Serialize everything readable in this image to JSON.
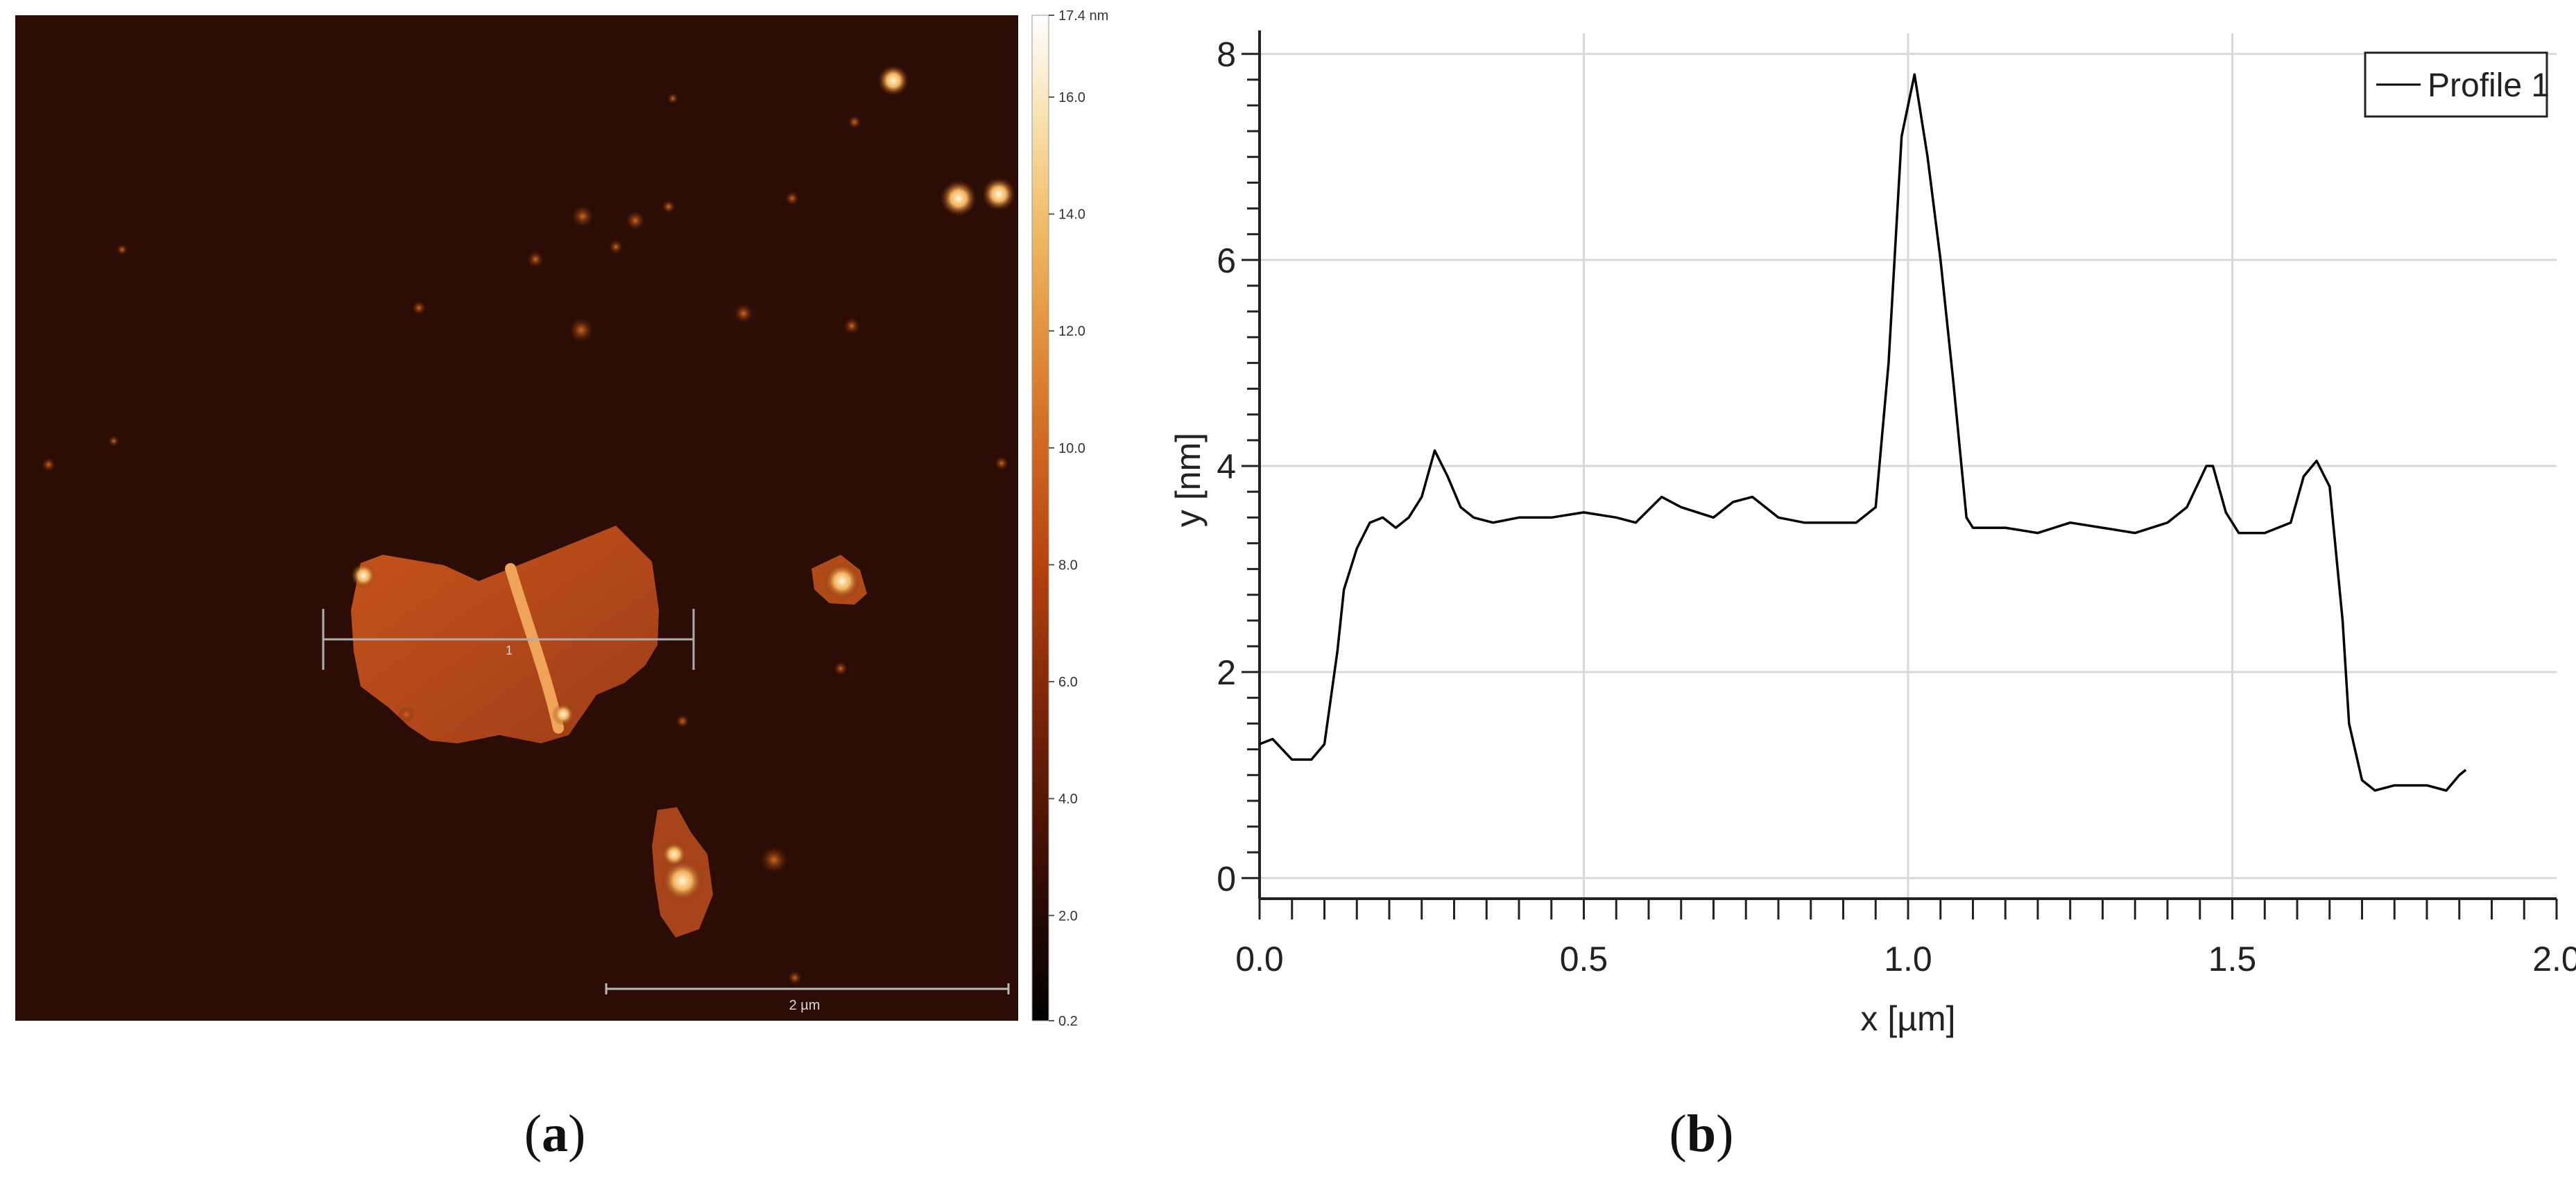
{
  "panel_a": {
    "caption": "(a)",
    "colorbar_ticks": [
      "17.4 nm",
      "16.0",
      "14.0",
      "12.0",
      "10.0",
      "8.0",
      "6.0",
      "4.0",
      "2.0",
      "0.2"
    ],
    "colorbar_range": [
      0.2,
      17.4
    ],
    "colorbar_unit": "nm",
    "scale_bar_label": "2 µm",
    "profile_marker_label": "1"
  },
  "panel_b": {
    "caption": "(b)"
  },
  "chart_data": [
    {
      "type": "heatmap",
      "title": "",
      "description_label": "AFM height image",
      "z_unit": "nm",
      "z_range": [
        0.2,
        17.4
      ],
      "colorbar_ticks": [
        0.2,
        2.0,
        4.0,
        6.0,
        8.0,
        10.0,
        12.0,
        14.0,
        16.0,
        17.4
      ],
      "scale_bar": "2 µm",
      "colors": {
        "low": "#000000",
        "mid1": "#3a0c02",
        "mid2": "#b5410f",
        "mid3": "#e8a040",
        "high": "#fffdf5"
      }
    },
    {
      "type": "line",
      "title": "",
      "xlabel": "x [µm]",
      "ylabel": "y [nm]",
      "xlim": [
        0,
        2.0
      ],
      "ylim": [
        -0.2,
        8.2
      ],
      "xticks": [
        0,
        0.5,
        1.0,
        1.5,
        2.0
      ],
      "xtick_labels": [
        "0.0",
        "0.5",
        "1.0",
        "1.5",
        "2.0"
      ],
      "yticks": [
        0,
        2,
        4,
        6,
        8
      ],
      "ytick_labels": [
        "0",
        "2",
        "4",
        "6",
        "8"
      ],
      "grid": true,
      "legend_position": "top-right",
      "series": [
        {
          "name": "Profile 1",
          "color": "#000000",
          "x": [
            0.0,
            0.02,
            0.05,
            0.08,
            0.1,
            0.12,
            0.13,
            0.15,
            0.17,
            0.19,
            0.21,
            0.23,
            0.25,
            0.27,
            0.29,
            0.31,
            0.33,
            0.36,
            0.4,
            0.45,
            0.5,
            0.55,
            0.58,
            0.62,
            0.65,
            0.7,
            0.73,
            0.76,
            0.8,
            0.84,
            0.88,
            0.92,
            0.95,
            0.97,
            0.99,
            1.01,
            1.03,
            1.05,
            1.07,
            1.09,
            1.1,
            1.15,
            1.2,
            1.25,
            1.3,
            1.35,
            1.4,
            1.43,
            1.46,
            1.47,
            1.49,
            1.51,
            1.55,
            1.59,
            1.61,
            1.63,
            1.65,
            1.67,
            1.68,
            1.7,
            1.72,
            1.75,
            1.8,
            1.83,
            1.85,
            1.86
          ],
          "y": [
            1.3,
            1.35,
            1.15,
            1.15,
            1.3,
            2.2,
            2.8,
            3.2,
            3.45,
            3.5,
            3.4,
            3.5,
            3.7,
            4.15,
            3.9,
            3.6,
            3.5,
            3.45,
            3.5,
            3.5,
            3.55,
            3.5,
            3.45,
            3.7,
            3.6,
            3.5,
            3.65,
            3.7,
            3.5,
            3.45,
            3.45,
            3.45,
            3.6,
            5.0,
            7.2,
            7.8,
            7.0,
            6.0,
            4.8,
            3.5,
            3.4,
            3.4,
            3.35,
            3.45,
            3.4,
            3.35,
            3.45,
            3.6,
            4.0,
            4.0,
            3.55,
            3.35,
            3.35,
            3.45,
            3.9,
            4.05,
            3.8,
            2.5,
            1.5,
            0.95,
            0.85,
            0.9,
            0.9,
            0.85,
            1.0,
            1.05
          ]
        }
      ]
    }
  ]
}
